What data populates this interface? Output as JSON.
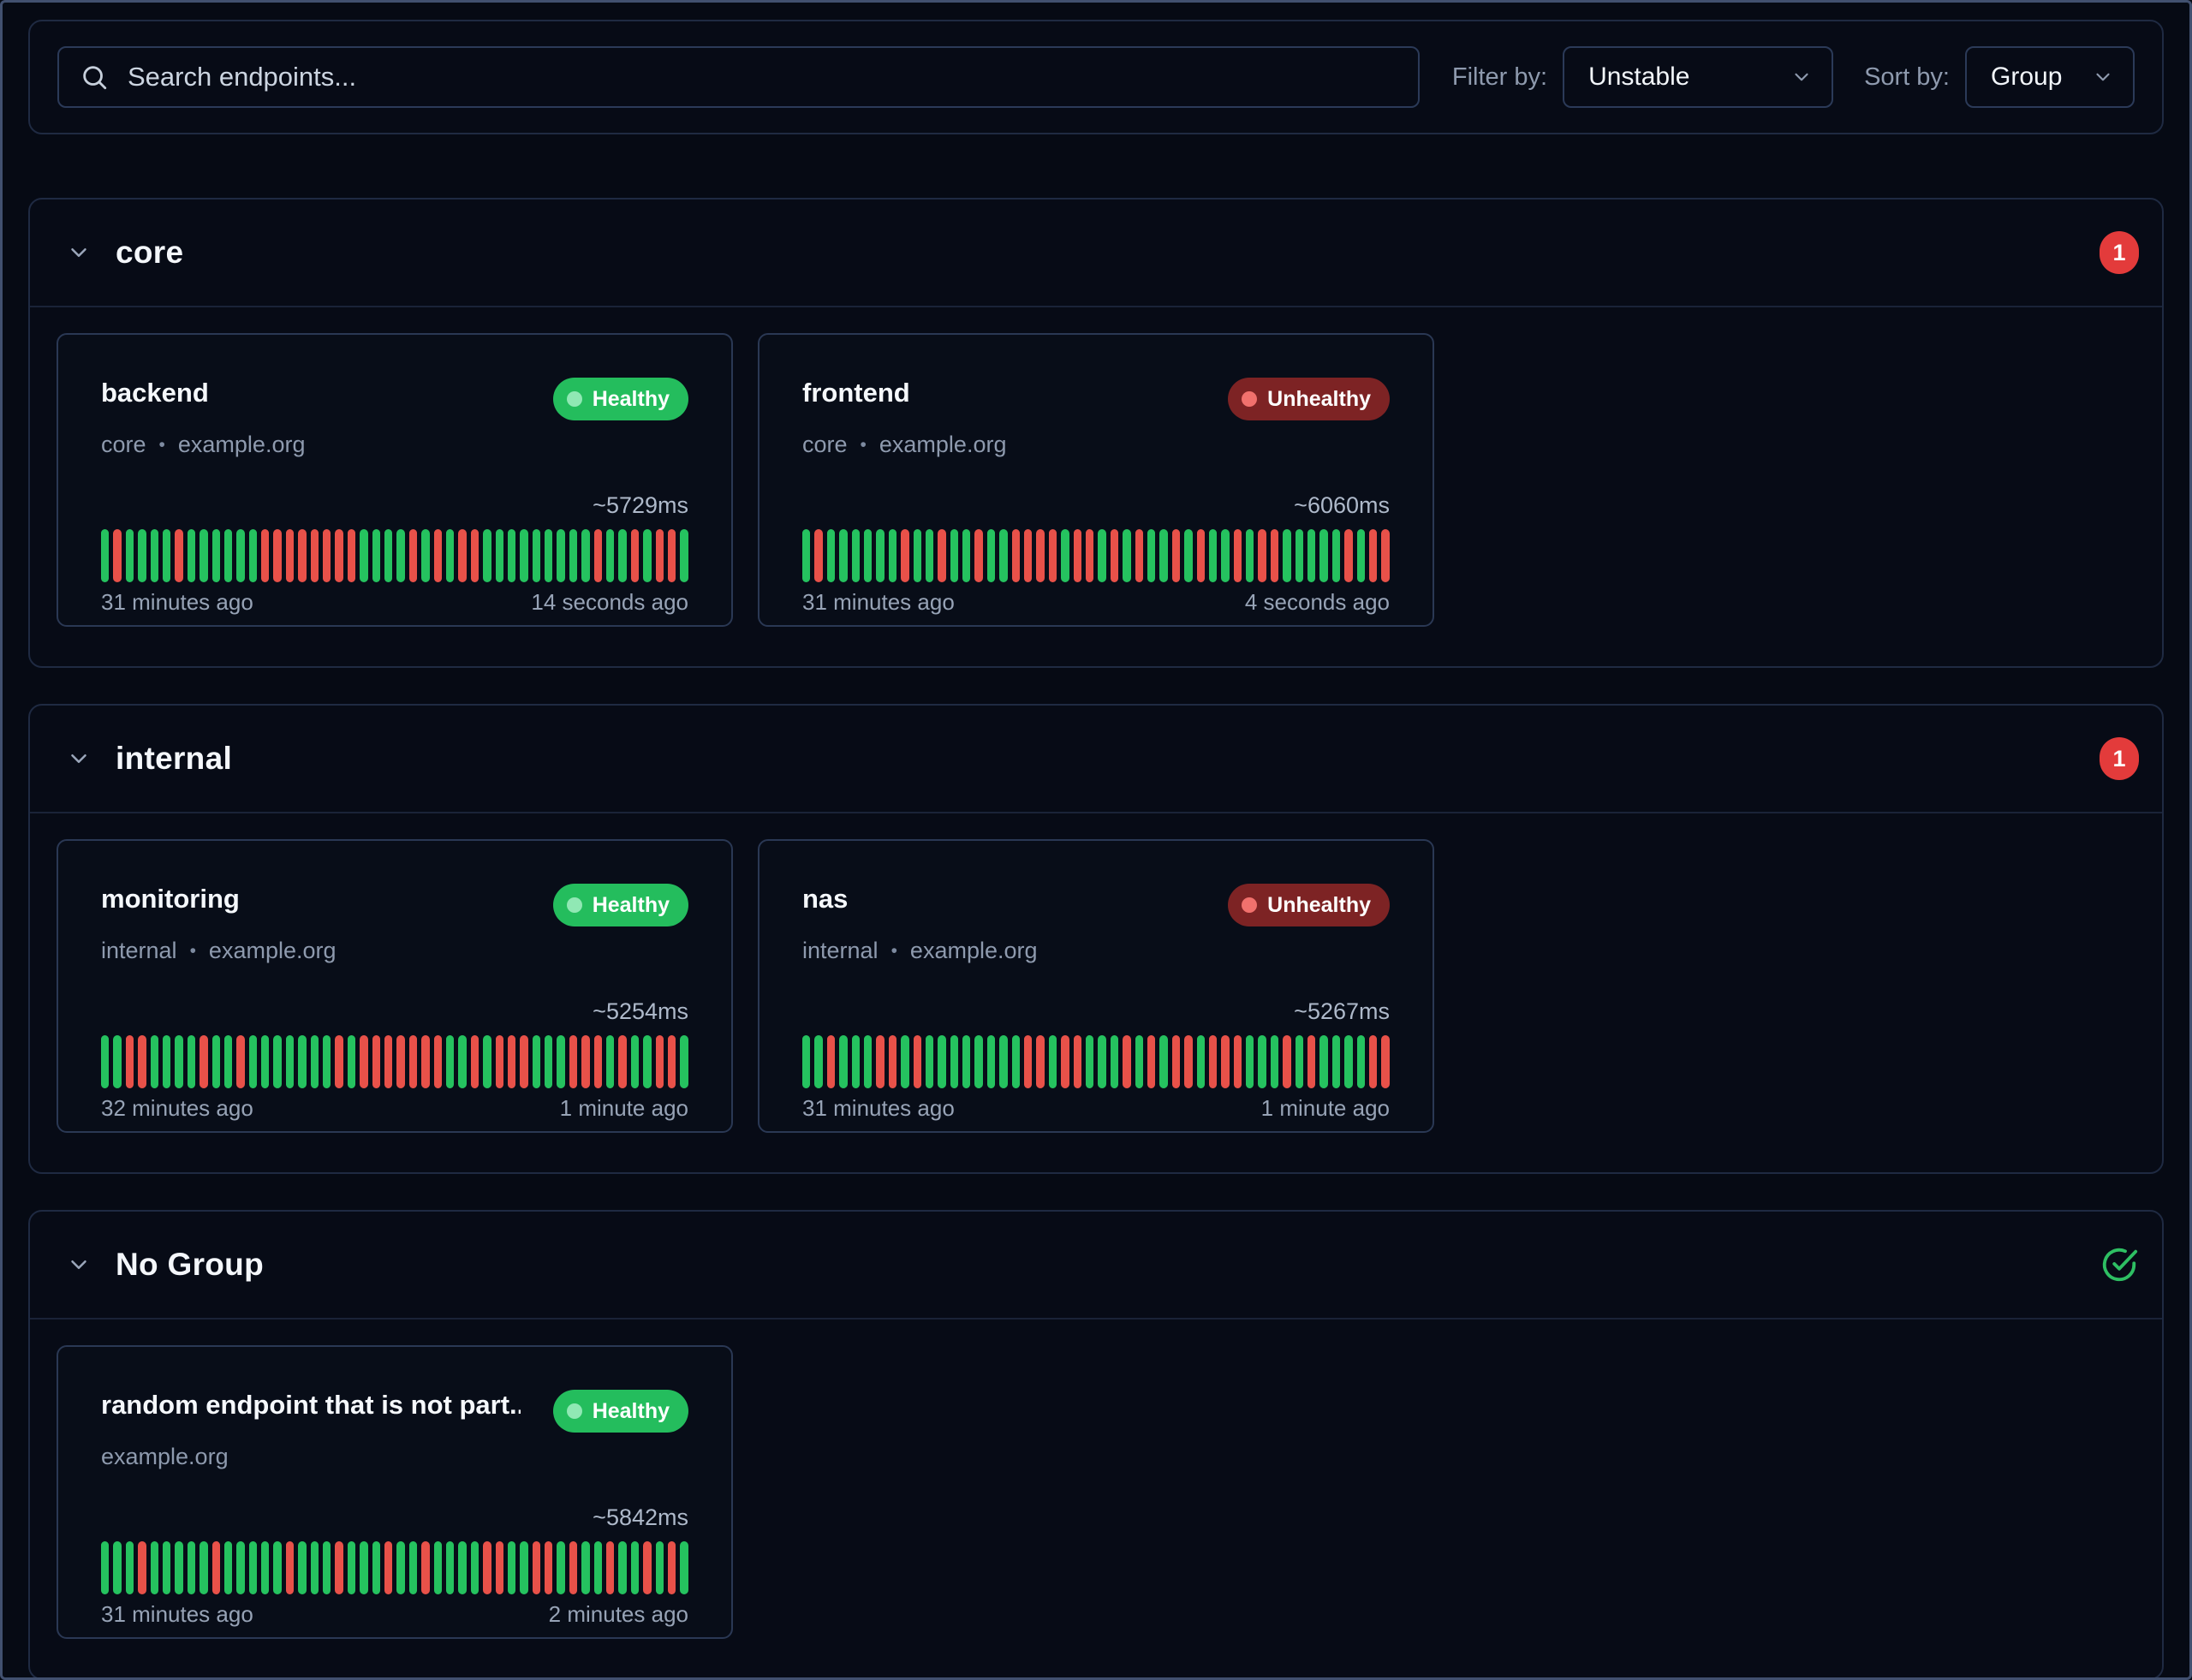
{
  "toolbar": {
    "search_placeholder": "Search endpoints...",
    "search_value": "",
    "filter_label": "Filter by:",
    "filter_value": "Unstable",
    "sort_label": "Sort by:",
    "sort_value": "Group"
  },
  "colors": {
    "success_bar": "#25c25f",
    "failure_bar": "#e85149",
    "healthy_badge_bg": "#24bd5d",
    "unhealthy_badge_bg": "#7d2324",
    "count_badge_bg": "#e33b3b",
    "check_icon": "#2ebf63",
    "page_bg": "#060a14"
  },
  "groups": [
    {
      "name": "core",
      "badge": {
        "type": "count",
        "value": "1"
      },
      "endpoints": [
        {
          "name": "backend",
          "subtitle": [
            "core",
            "example.org"
          ],
          "status": "Healthy",
          "response_time": "~5729ms",
          "oldest": "31 minutes ago",
          "newest": "14 seconds ago",
          "results": "101111011111100000000111101010011111111101101001"
        },
        {
          "name": "frontend",
          "subtitle": [
            "core",
            "example.org"
          ],
          "status": "Unhealthy",
          "response_time": "~6060ms",
          "oldest": "31 minutes ago",
          "newest": "4 seconds ago",
          "results": "101111110110110110000100101011010110100111110100"
        }
      ]
    },
    {
      "name": "internal",
      "badge": {
        "type": "count",
        "value": "1"
      },
      "endpoints": [
        {
          "name": "monitoring",
          "subtitle": [
            "internal",
            "example.org"
          ],
          "status": "Healthy",
          "response_time": "~5254ms",
          "oldest": "32 minutes ago",
          "newest": "1 minute ago",
          "results": "110011110110111111101000000011010001110001011001"
        },
        {
          "name": "nas",
          "subtitle": [
            "internal",
            "example.org"
          ],
          "status": "Unhealthy",
          "response_time": "~5267ms",
          "oldest": "31 minutes ago",
          "newest": "1 minute ago",
          "results": "110111001011111111001001110101001000111010111100"
        }
      ]
    },
    {
      "name": "No Group",
      "badge": {
        "type": "all-healthy"
      },
      "endpoints": [
        {
          "name": "random endpoint that is not part...",
          "subtitle": [
            "example.org"
          ],
          "status": "Healthy",
          "response_time": "~5842ms",
          "oldest": "31 minutes ago",
          "newest": "2 minutes ago",
          "results": "111011111011111011101110110111100110010110110101"
        }
      ]
    }
  ]
}
